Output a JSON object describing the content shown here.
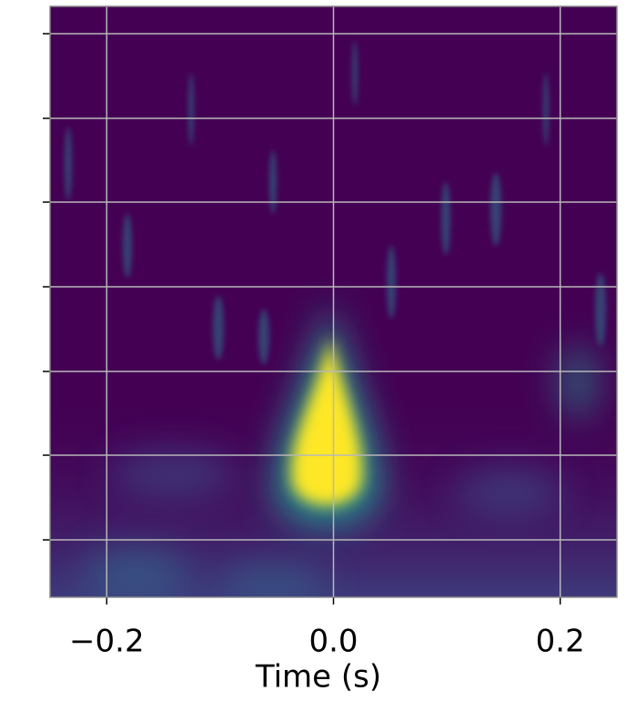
{
  "chart_data": {
    "type": "heatmap",
    "xlabel": "Time (s)",
    "xlim": [
      -0.25,
      0.25
    ],
    "xticks": [
      {
        "value": -0.2,
        "label": "−0.2"
      },
      {
        "value": 0,
        "label": "0.0"
      },
      0.2
    ],
    "grid": true
  }
}
